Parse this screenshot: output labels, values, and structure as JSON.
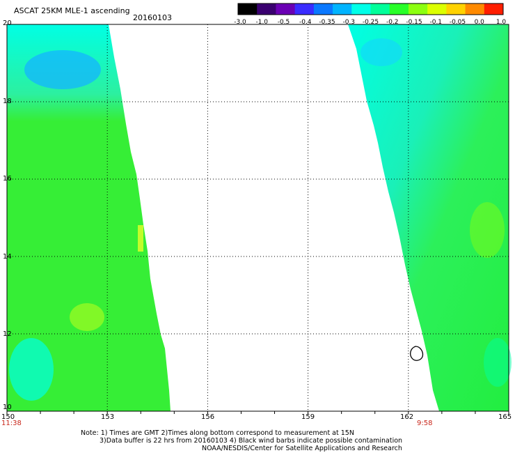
{
  "header": {
    "title": "ASCAT 25KM MLE-1 ascending",
    "date": "20160103"
  },
  "colorbar": {
    "colors": [
      "#000000",
      "#3a0070",
      "#6a00b4",
      "#3a2cff",
      "#0a78ff",
      "#00b4ff",
      "#00ffe8",
      "#00ff9a",
      "#28ff28",
      "#8cff10",
      "#dcff00",
      "#ffd200",
      "#ff8a00",
      "#ff1e00"
    ],
    "labels": [
      "-3.0",
      "-1.0",
      "-0.5",
      "-0.4",
      "-0.35",
      "-0.3",
      "-0.25",
      "-0.2",
      "-0.15",
      "-0.1",
      "-0.05",
      "0.0",
      "1.0"
    ]
  },
  "axes": {
    "y_ticks": [
      "20",
      "18",
      "16",
      "14",
      "12",
      "10"
    ],
    "x_ticks": [
      "150",
      "153",
      "156",
      "159",
      "162",
      "165"
    ],
    "left_time": "11:38",
    "right_time": "9:58"
  },
  "notes": {
    "line1": "Note: 1) Times are GMT 2)Times along bottom correspond to measurement at 15N",
    "line2": "3)Data buffer is 22 hrs from 20160103 4) Black wind barbs indicate possible contamination",
    "line3": "NOAA/NESDIS/Center for Satellite Applications and Research"
  },
  "map": {
    "lon_range": [
      150,
      165
    ],
    "lat_range": [
      10,
      20
    ],
    "swath_left_color": "#36ee36",
    "swath_right_color": "#2cf05a",
    "cyan_color": "#00ffe4",
    "blue_color": "#14b4ff"
  }
}
